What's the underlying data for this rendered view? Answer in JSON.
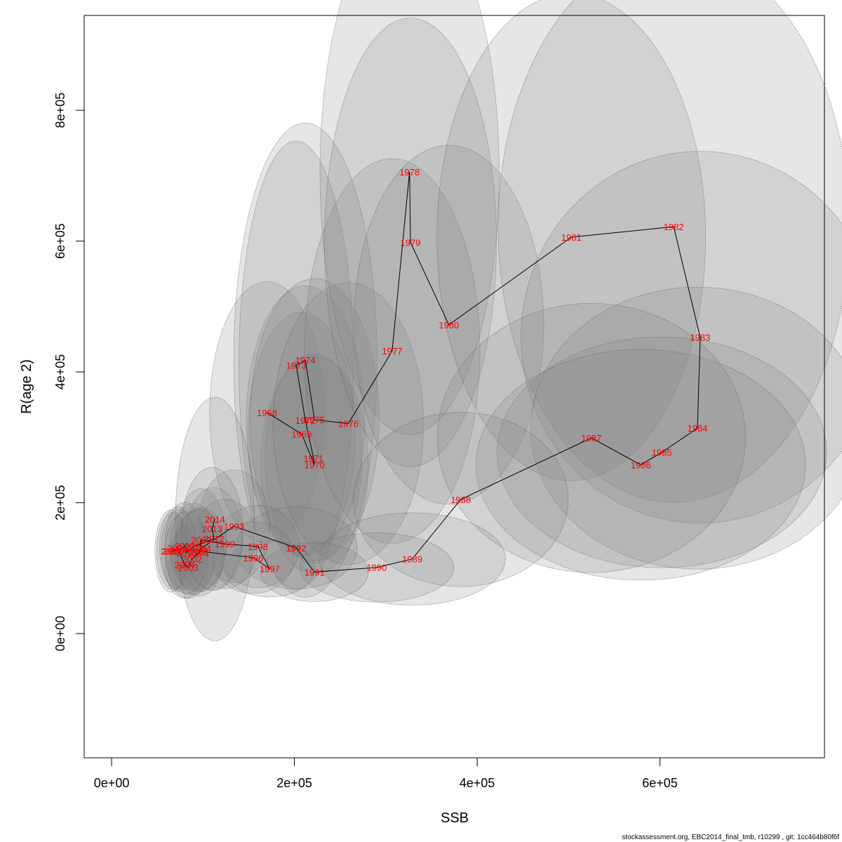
{
  "chart_data": {
    "type": "scatter",
    "title": "",
    "xlabel": "SSB",
    "ylabel": "R(age 2)",
    "xlim": [
      -30000,
      780000
    ],
    "ylim": [
      -190000,
      945000
    ],
    "x_ticks": [
      0,
      200000,
      400000,
      600000
    ],
    "x_tick_labels": [
      "0e+00",
      "2e+05",
      "4e+05",
      "6e+05"
    ],
    "y_ticks": [
      0,
      200000,
      400000,
      600000,
      800000
    ],
    "y_tick_labels": [
      "0e+00",
      "2e+05",
      "4e+05",
      "6e+05",
      "8e+05"
    ],
    "grid": false,
    "footer": "stockassessment.org, EBC2014_final_tmb, r10299 , git: 1cc464b80f6f",
    "points": [
      {
        "year": "1968",
        "ssb": 170000,
        "r": 338000,
        "sd_ssb": 32000,
        "sd_r": 102000
      },
      {
        "year": "1969",
        "ssb": 208000,
        "r": 305000,
        "sd_ssb": 30000,
        "sd_r": 95000
      },
      {
        "year": "1970",
        "ssb": 222000,
        "r": 258000,
        "sd_ssb": 30000,
        "sd_r": 85000
      },
      {
        "year": "1971",
        "ssb": 221000,
        "r": 268000,
        "sd_ssb": 27000,
        "sd_r": 82000
      },
      {
        "year": "1972",
        "ssb": 212000,
        "r": 326000,
        "sd_ssb": 33000,
        "sd_r": 105000
      },
      {
        "year": "1973",
        "ssb": 202000,
        "r": 410000,
        "sd_ssb": 32000,
        "sd_r": 175000
      },
      {
        "year": "1974",
        "ssb": 212000,
        "r": 418000,
        "sd_ssb": 40000,
        "sd_r": 185000
      },
      {
        "year": "1975",
        "ssb": 222000,
        "r": 327000,
        "sd_ssb": 36000,
        "sd_r": 110000
      },
      {
        "year": "1976",
        "ssb": 259000,
        "r": 321000,
        "sd_ssb": 42000,
        "sd_r": 110000
      },
      {
        "year": "1977",
        "ssb": 307000,
        "r": 432000,
        "sd_ssb": 49000,
        "sd_r": 150000
      },
      {
        "year": "1978",
        "ssb": 326000,
        "r": 706000,
        "sd_ssb": 50000,
        "sd_r": 205000
      },
      {
        "year": "1979",
        "ssb": 327000,
        "r": 598000,
        "sd_ssb": 48000,
        "sd_r": 175000
      },
      {
        "year": "1980",
        "ssb": 369000,
        "r": 472000,
        "sd_ssb": 53000,
        "sd_r": 140000
      },
      {
        "year": "1981",
        "ssb": 503000,
        "r": 606000,
        "sd_ssb": 75000,
        "sd_r": 190000
      },
      {
        "year": "1982",
        "ssb": 615000,
        "r": 622000,
        "sd_ssb": 98000,
        "sd_r": 215000
      },
      {
        "year": "1983",
        "ssb": 644000,
        "r": 453000,
        "sd_ssb": 100000,
        "sd_r": 145000
      },
      {
        "year": "1984",
        "ssb": 641000,
        "r": 314000,
        "sd_ssb": 93000,
        "sd_r": 110000
      },
      {
        "year": "1985",
        "ssb": 602000,
        "r": 277000,
        "sd_ssb": 92000,
        "sd_r": 90000
      },
      {
        "year": "1986",
        "ssb": 579000,
        "r": 258000,
        "sd_ssb": 92000,
        "sd_r": 90000
      },
      {
        "year": "1987",
        "ssb": 525000,
        "r": 299000,
        "sd_ssb": 86000,
        "sd_r": 105000
      },
      {
        "year": "1988",
        "ssb": 382000,
        "r": 205000,
        "sd_ssb": 60000,
        "sd_r": 68000
      },
      {
        "year": "1989",
        "ssb": 329000,
        "r": 114000,
        "sd_ssb": 52000,
        "sd_r": 36000
      },
      {
        "year": "1990",
        "ssb": 290000,
        "r": 101000,
        "sd_ssb": 43000,
        "sd_r": 27000
      },
      {
        "year": "1991",
        "ssb": 222000,
        "r": 94000,
        "sd_ssb": 30000,
        "sd_r": 23000
      },
      {
        "year": "1992",
        "ssb": 202000,
        "r": 131000,
        "sd_ssb": 34000,
        "sd_r": 32000
      },
      {
        "year": "1993",
        "ssb": 134000,
        "r": 164000,
        "sd_ssb": 20000,
        "sd_r": 44000
      },
      {
        "year": "1994",
        "ssb": 98000,
        "r": 130000,
        "sd_ssb": 14000,
        "sd_r": 32000
      },
      {
        "year": "1995",
        "ssb": 95000,
        "r": 126000,
        "sd_ssb": 14000,
        "sd_r": 32000
      },
      {
        "year": "1996",
        "ssb": 155000,
        "r": 116000,
        "sd_ssb": 23000,
        "sd_r": 28000
      },
      {
        "year": "1997",
        "ssb": 173000,
        "r": 99000,
        "sd_ssb": 25000,
        "sd_r": 22000
      },
      {
        "year": "1998",
        "ssb": 160000,
        "r": 133000,
        "sd_ssb": 23000,
        "sd_r": 32000
      },
      {
        "year": "1999",
        "ssb": 124000,
        "r": 137000,
        "sd_ssb": 18000,
        "sd_r": 35000
      },
      {
        "year": "2000",
        "ssb": 98000,
        "r": 143000,
        "sd_ssb": 14000,
        "sd_r": 40000
      },
      {
        "year": "2001",
        "ssb": 96000,
        "r": 124000,
        "sd_ssb": 14000,
        "sd_r": 34000
      },
      {
        "year": "2002",
        "ssb": 88000,
        "r": 114000,
        "sd_ssb": 12000,
        "sd_r": 28000
      },
      {
        "year": "2003",
        "ssb": 84000,
        "r": 101000,
        "sd_ssb": 11000,
        "sd_r": 24000
      },
      {
        "year": "2004",
        "ssb": 80000,
        "r": 105000,
        "sd_ssb": 11000,
        "sd_r": 26000
      },
      {
        "year": "2005",
        "ssb": 72000,
        "r": 131000,
        "sd_ssb": 10000,
        "sd_r": 32000
      },
      {
        "year": "2006",
        "ssb": 67000,
        "r": 126000,
        "sd_ssb": 9000,
        "sd_r": 30000
      },
      {
        "year": "2007",
        "ssb": 65000,
        "r": 126000,
        "sd_ssb": 9000,
        "sd_r": 32000
      },
      {
        "year": "2008",
        "ssb": 74000,
        "r": 127000,
        "sd_ssb": 10000,
        "sd_r": 32000
      },
      {
        "year": "2009",
        "ssb": 80000,
        "r": 134000,
        "sd_ssb": 11000,
        "sd_r": 34000
      },
      {
        "year": "2010",
        "ssb": 82000,
        "r": 124000,
        "sd_ssb": 12000,
        "sd_r": 32000
      },
      {
        "year": "2011",
        "ssb": 90000,
        "r": 133000,
        "sd_ssb": 13000,
        "sd_r": 34000
      },
      {
        "year": "2012",
        "ssb": 112000,
        "r": 145000,
        "sd_ssb": 16000,
        "sd_r": 40000
      },
      {
        "year": "2013",
        "ssb": 110000,
        "r": 160000,
        "sd_ssb": 17000,
        "sd_r": 48000
      },
      {
        "year": "2014",
        "ssb": 113000,
        "r": 175000,
        "sd_ssb": 22000,
        "sd_r": 95000
      }
    ]
  }
}
